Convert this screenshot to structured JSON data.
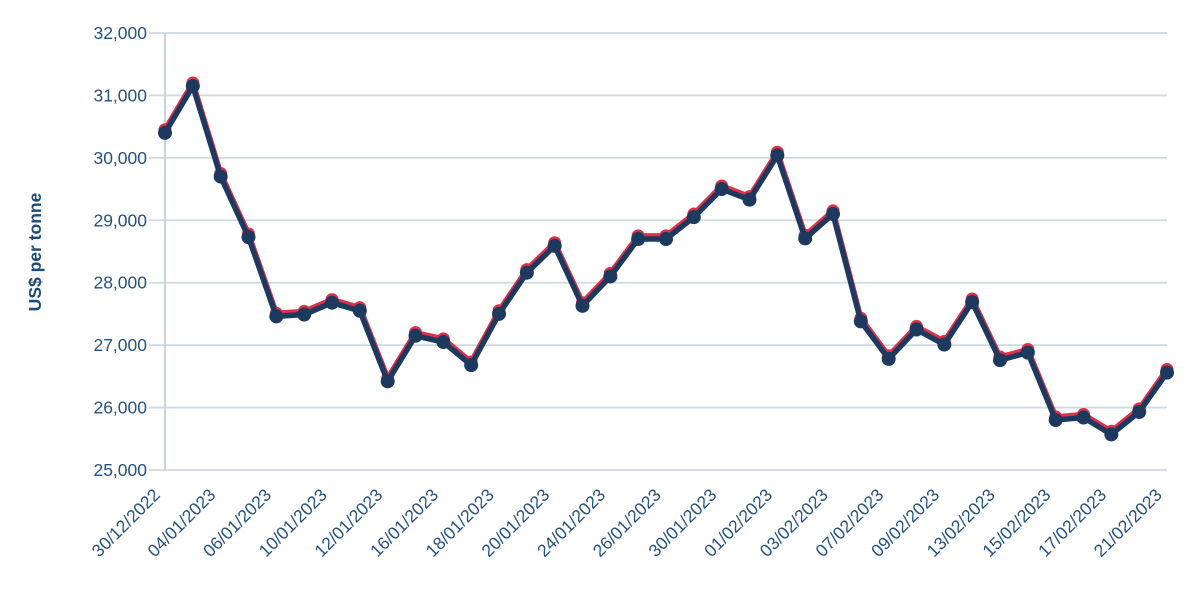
{
  "chart_data": {
    "type": "line",
    "title": "",
    "xlabel": "",
    "ylabel": "US$ per tonne",
    "ylim": [
      25000,
      32000
    ],
    "grid": true,
    "legend_position": "none",
    "y_ticks": [
      {
        "value": 32000,
        "label": "32,000"
      },
      {
        "value": 31000,
        "label": "31,000"
      },
      {
        "value": 30000,
        "label": "30,000"
      },
      {
        "value": 29000,
        "label": "29,000"
      },
      {
        "value": 28000,
        "label": "28,000"
      },
      {
        "value": 27000,
        "label": "27,000"
      },
      {
        "value": 26000,
        "label": "26,000"
      },
      {
        "value": 25000,
        "label": "25,000"
      }
    ],
    "x_tick_labels": [
      "30/12/2022",
      "04/01/2023",
      "06/01/2023",
      "10/01/2023",
      "12/01/2023",
      "16/01/2023",
      "18/01/2023",
      "20/01/2023",
      "24/01/2023",
      "26/01/2023",
      "30/01/2023",
      "01/02/2023",
      "03/02/2023",
      "07/02/2023",
      "09/02/2023",
      "13/02/2023",
      "15/02/2023",
      "17/02/2023",
      "21/02/2023"
    ],
    "x_tick_every": 2,
    "x": [
      "30/12/2022",
      "03/01/2023",
      "04/01/2023",
      "05/01/2023",
      "06/01/2023",
      "09/01/2023",
      "10/01/2023",
      "11/01/2023",
      "12/01/2023",
      "13/01/2023",
      "16/01/2023",
      "17/01/2023",
      "18/01/2023",
      "19/01/2023",
      "20/01/2023",
      "23/01/2023",
      "24/01/2023",
      "25/01/2023",
      "26/01/2023",
      "27/01/2023",
      "30/01/2023",
      "31/01/2023",
      "01/02/2023",
      "02/02/2023",
      "03/02/2023",
      "06/02/2023",
      "07/02/2023",
      "08/02/2023",
      "09/02/2023",
      "10/02/2023",
      "13/02/2023",
      "14/02/2023",
      "15/02/2023",
      "16/02/2023",
      "17/02/2023",
      "20/02/2023",
      "21/02/2023"
    ],
    "series": [
      {
        "name": "red",
        "color": "#e03049",
        "values": [
          30450,
          31200,
          29750,
          28780,
          27510,
          27540,
          27730,
          27600,
          26470,
          27200,
          27100,
          26730,
          27550,
          28210,
          28640,
          27680,
          28150,
          28750,
          28750,
          29100,
          29550,
          29380,
          30090,
          28760,
          29150,
          27430,
          26830,
          27300,
          27060,
          27740,
          26810,
          26930,
          25850,
          25890,
          25620,
          25980,
          26610
        ]
      },
      {
        "name": "navy",
        "color": "#1d3a5e",
        "values": [
          30400,
          31150,
          29700,
          28730,
          27460,
          27490,
          27680,
          27550,
          26420,
          27150,
          27050,
          26680,
          27500,
          28160,
          28590,
          27630,
          28100,
          28700,
          28700,
          29050,
          29500,
          29330,
          30040,
          28710,
          29100,
          27380,
          26780,
          27250,
          27010,
          27690,
          26760,
          26880,
          25800,
          25840,
          25570,
          25930,
          26560
        ]
      }
    ]
  },
  "colors": {
    "gridline": "#cfdae3",
    "axis_line": "#c2d0da",
    "tick_text": "#26527f",
    "axis_title_text": "#1e4a77",
    "background": "#ffffff"
  }
}
